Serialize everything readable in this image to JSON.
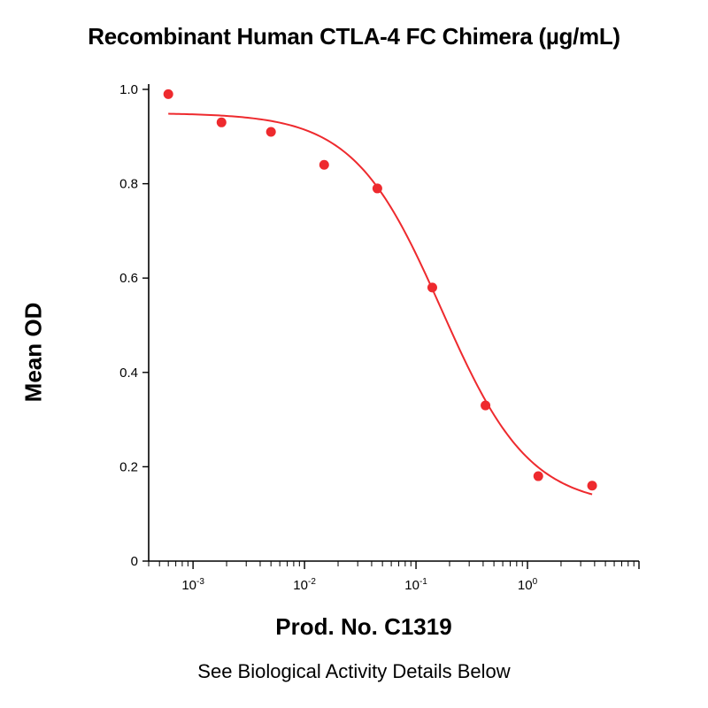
{
  "chart_data": {
    "type": "scatter",
    "title": "Recombinant Human CTLA-4 FC Chimera (µg/mL)",
    "xlabel": "Prod. No. C1319",
    "ylabel": "Mean OD",
    "subtitle": "See Biological Activity Details Below",
    "x_scale": "log",
    "xlim": [
      0.0004,
      10
    ],
    "ylim": [
      0,
      1.0
    ],
    "x_ticks": [
      {
        "value": 0.001,
        "base": "10",
        "exp": "-3"
      },
      {
        "value": 0.01,
        "base": "10",
        "exp": "-2"
      },
      {
        "value": 0.1,
        "base": "10",
        "exp": "-1"
      },
      {
        "value": 1,
        "base": "10",
        "exp": "0"
      }
    ],
    "y_ticks": [
      {
        "value": 0,
        "label": "0"
      },
      {
        "value": 0.2,
        "label": "0.2"
      },
      {
        "value": 0.4,
        "label": "0.4"
      },
      {
        "value": 0.6,
        "label": "0.6"
      },
      {
        "value": 0.8,
        "label": "0.8"
      },
      {
        "value": 1.0,
        "label": "1.0"
      }
    ],
    "grid": false,
    "series": [
      {
        "points": [
          {
            "x": 0.0006,
            "y": 0.99
          },
          {
            "x": 0.0018,
            "y": 0.93
          },
          {
            "x": 0.005,
            "y": 0.91
          },
          {
            "x": 0.015,
            "y": 0.84
          },
          {
            "x": 0.045,
            "y": 0.79
          },
          {
            "x": 0.14,
            "y": 0.58
          },
          {
            "x": 0.42,
            "y": 0.33
          },
          {
            "x": 1.25,
            "y": 0.18
          },
          {
            "x": 3.8,
            "y": 0.16
          }
        ],
        "fit": {
          "model": "4PL",
          "top": 0.95,
          "bottom": 0.115,
          "ec50": 0.17,
          "hill": 1.1,
          "x_range": [
            0.0006,
            3.8
          ]
        },
        "color": "#ee2a2e"
      }
    ],
    "axis_color": "#000000"
  }
}
